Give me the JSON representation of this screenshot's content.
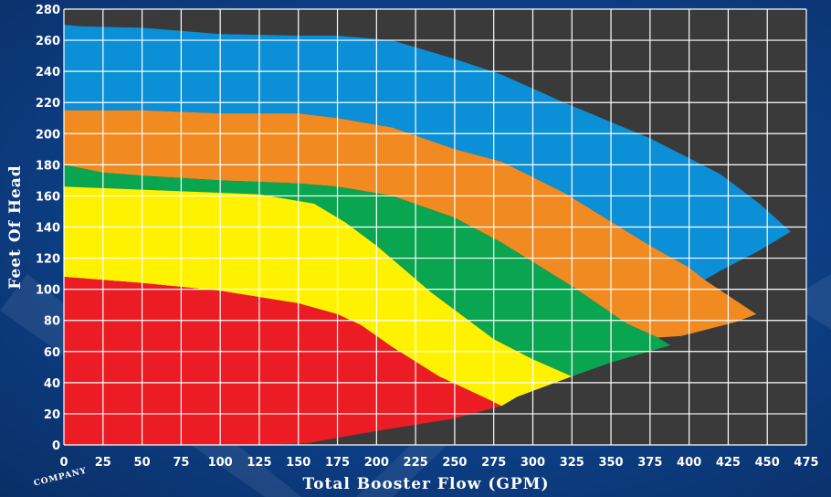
{
  "chart_data": {
    "type": "area",
    "xlabel": "Total Booster Flow (GPM)",
    "ylabel": "Feet Of Head",
    "xlim": [
      0,
      475
    ],
    "ylim": [
      0,
      280
    ],
    "xticks": [
      "0",
      "25",
      "50",
      "75",
      "100",
      "125",
      "150",
      "175",
      "200",
      "225",
      "250",
      "275",
      "300",
      "325",
      "350",
      "375",
      "400",
      "425",
      "450",
      "475"
    ],
    "yticks": [
      "0",
      "20",
      "40",
      "60",
      "80",
      "100",
      "120",
      "140",
      "160",
      "180",
      "200",
      "220",
      "240",
      "260",
      "280"
    ],
    "grid": true,
    "grid_color": "#ffffff",
    "plot_background": "#3a3a3a",
    "series": [
      {
        "color": "#0b8fd6",
        "upper": [
          [
            0,
            270
          ],
          [
            10,
            269
          ],
          [
            50,
            268
          ],
          [
            100,
            264
          ],
          [
            150,
            263
          ],
          [
            175,
            263
          ],
          [
            210,
            260
          ],
          [
            250,
            248
          ],
          [
            280,
            238
          ],
          [
            320,
            220
          ],
          [
            375,
            197
          ],
          [
            420,
            174
          ],
          [
            445,
            155
          ],
          [
            465,
            137
          ]
        ],
        "lower": [
          [
            0,
            215
          ],
          [
            50,
            215
          ],
          [
            100,
            213
          ],
          [
            150,
            213
          ],
          [
            175,
            210
          ],
          [
            210,
            204
          ],
          [
            250,
            190
          ],
          [
            280,
            182
          ],
          [
            320,
            162
          ],
          [
            375,
            128
          ],
          [
            400,
            114
          ],
          [
            410,
            106
          ],
          [
            420,
            112
          ],
          [
            445,
            125
          ],
          [
            465,
            137
          ]
        ]
      },
      {
        "color": "#f28a22",
        "upper": [
          [
            0,
            215
          ],
          [
            50,
            215
          ],
          [
            100,
            213
          ],
          [
            150,
            213
          ],
          [
            175,
            210
          ],
          [
            210,
            204
          ],
          [
            250,
            190
          ],
          [
            280,
            182
          ],
          [
            320,
            162
          ],
          [
            375,
            128
          ],
          [
            400,
            114
          ],
          [
            410,
            106
          ],
          [
            443,
            84
          ]
        ],
        "lower": [
          [
            0,
            180
          ],
          [
            25,
            175
          ],
          [
            50,
            173
          ],
          [
            100,
            170
          ],
          [
            150,
            168
          ],
          [
            175,
            166
          ],
          [
            210,
            160
          ],
          [
            250,
            146
          ],
          [
            280,
            130
          ],
          [
            325,
            102
          ],
          [
            360,
            78
          ],
          [
            380,
            69
          ],
          [
            395,
            70
          ],
          [
            430,
            79
          ],
          [
            443,
            84
          ]
        ]
      },
      {
        "color": "#0aa550",
        "upper": [
          [
            0,
            180
          ],
          [
            25,
            175
          ],
          [
            50,
            173
          ],
          [
            100,
            170
          ],
          [
            150,
            168
          ],
          [
            175,
            166
          ],
          [
            210,
            160
          ],
          [
            250,
            146
          ],
          [
            280,
            130
          ],
          [
            325,
            102
          ],
          [
            360,
            78
          ],
          [
            380,
            69
          ],
          [
            388,
            64
          ]
        ],
        "lower": [
          [
            0,
            166
          ],
          [
            50,
            164
          ],
          [
            100,
            162
          ],
          [
            125,
            161
          ],
          [
            160,
            155
          ],
          [
            180,
            143
          ],
          [
            200,
            128
          ],
          [
            235,
            98
          ],
          [
            275,
            68
          ],
          [
            300,
            55
          ],
          [
            325,
            44
          ],
          [
            350,
            53
          ],
          [
            388,
            64
          ]
        ]
      },
      {
        "color": "#fff200",
        "upper": [
          [
            0,
            166
          ],
          [
            50,
            164
          ],
          [
            100,
            162
          ],
          [
            125,
            161
          ],
          [
            160,
            155
          ],
          [
            180,
            143
          ],
          [
            200,
            128
          ],
          [
            235,
            98
          ],
          [
            275,
            68
          ],
          [
            300,
            55
          ],
          [
            325,
            44
          ]
        ],
        "lower": [
          [
            0,
            108
          ],
          [
            50,
            104
          ],
          [
            100,
            99
          ],
          [
            150,
            91
          ],
          [
            175,
            84
          ],
          [
            190,
            77
          ],
          [
            210,
            63
          ],
          [
            240,
            44
          ],
          [
            270,
            30
          ],
          [
            280,
            25
          ],
          [
            290,
            31
          ],
          [
            325,
            44
          ]
        ]
      },
      {
        "color": "#ec1c24",
        "upper": [
          [
            0,
            108
          ],
          [
            50,
            104
          ],
          [
            100,
            99
          ],
          [
            150,
            91
          ],
          [
            175,
            84
          ],
          [
            190,
            77
          ],
          [
            210,
            63
          ],
          [
            240,
            44
          ],
          [
            270,
            30
          ],
          [
            280,
            25
          ]
        ],
        "lower": [
          [
            0,
            0
          ],
          [
            125,
            0
          ],
          [
            155,
            1
          ],
          [
            200,
            9
          ],
          [
            250,
            17
          ],
          [
            280,
            25
          ]
        ]
      }
    ]
  },
  "brand": {
    "stamp_text": "COMPANY"
  }
}
